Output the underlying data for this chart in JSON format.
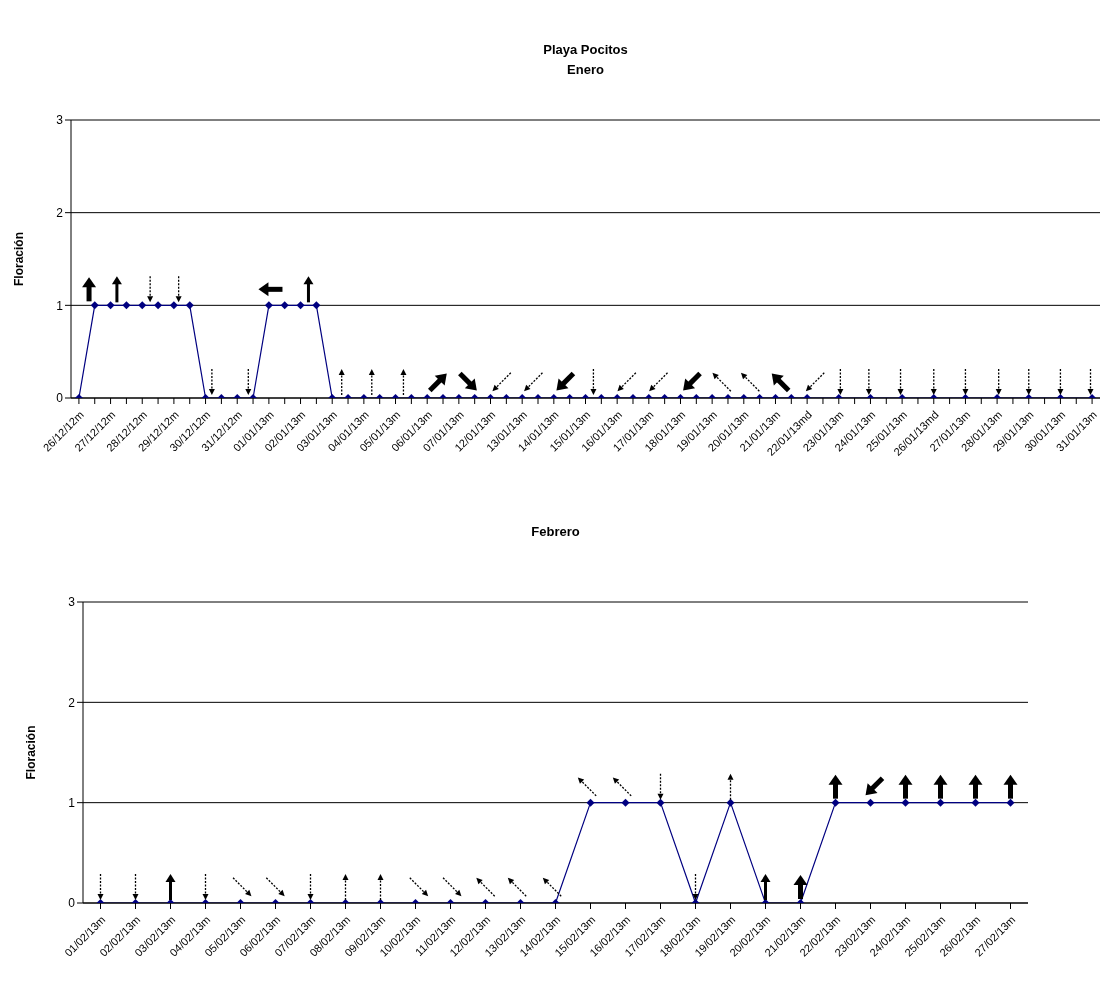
{
  "chart_data": [
    {
      "type": "line",
      "title": "Playa Pocitos",
      "subtitle": "Enero",
      "ylabel": "Floración",
      "categories": [
        "26/12/12m",
        null,
        "27/12/12m",
        null,
        "28/12/12m",
        null,
        "29/12/12m",
        null,
        "30/12/12m",
        null,
        "31/12/12m",
        null,
        "01/01/13m",
        null,
        "02/01/13m",
        null,
        "03/01/13m",
        null,
        "04/01/13m",
        null,
        "05/01/13m",
        null,
        "06/01/13m",
        null,
        "07/01/13m",
        null,
        "12/01/13m",
        null,
        "13/01/13m",
        null,
        "14/01/13m",
        null,
        "15/01/13m",
        null,
        "16/01/13m",
        null,
        "17/01/13m",
        null,
        "18/01/13m",
        null,
        "19/01/13m",
        null,
        "20/01/13m",
        null,
        "21/01/13m",
        null,
        "22/01/13md",
        null,
        "23/01/13m",
        null,
        "24/01/13m",
        null,
        "25/01/13m",
        null,
        "26/01/13md",
        null,
        "27/01/13m",
        null,
        "28/01/13m",
        null,
        "29/01/13m",
        null,
        "30/01/13m",
        null,
        "31/01/13m"
      ],
      "series": [
        {
          "color": "#000080",
          "values": [
            0,
            1,
            1,
            1,
            1,
            1,
            1,
            1,
            0,
            0,
            0,
            0,
            1,
            1,
            1,
            1,
            0,
            0,
            0,
            0,
            0,
            0,
            0,
            0,
            0,
            0,
            0,
            0,
            0,
            0,
            0,
            0,
            0,
            0,
            0,
            0,
            0,
            0,
            0,
            0,
            0,
            0,
            0,
            0,
            0,
            0,
            0,
            null,
            0,
            null,
            0,
            null,
            0,
            null,
            0,
            null,
            0,
            null,
            0,
            null,
            0,
            null,
            0,
            null,
            0
          ]
        }
      ],
      "ylim": [
        0,
        3
      ],
      "yticks": [
        0,
        1,
        2,
        3
      ],
      "grid": "y",
      "marker": "diamond"
    },
    {
      "type": "line",
      "title": "Febrero",
      "ylabel": "Floración",
      "categories": [
        "01/02/13m",
        "02/02/13m",
        "03/02/13m",
        "04/02/13m",
        "05/02/13m",
        "06/02/13m",
        "07/02/13m",
        "08/02/13m",
        "09/02/13m",
        "10/02/13m",
        "11/02/13m",
        "12/02/13m",
        "13/02/13m",
        "14/02/13m",
        "15/02/13m",
        "16/02/13m",
        "17/02/13m",
        "18/02/13m",
        "19/02/13m",
        "20/02/13m",
        "21/02/13m",
        "22/02/13m",
        "23/02/13m",
        "24/02/13m",
        "25/02/13m",
        "26/02/13m",
        "27/02/13m"
      ],
      "series": [
        {
          "color": "#000080",
          "values": [
            0,
            0,
            0,
            0,
            0,
            0,
            0,
            0,
            0,
            0,
            0,
            0,
            0,
            0,
            1,
            1,
            1,
            0,
            1,
            0,
            0,
            1,
            1,
            1,
            1,
            1,
            1
          ]
        }
      ],
      "ylim": [
        0,
        3
      ],
      "yticks": [
        0,
        1,
        2,
        3
      ],
      "grid": "y",
      "marker": "diamond"
    }
  ]
}
